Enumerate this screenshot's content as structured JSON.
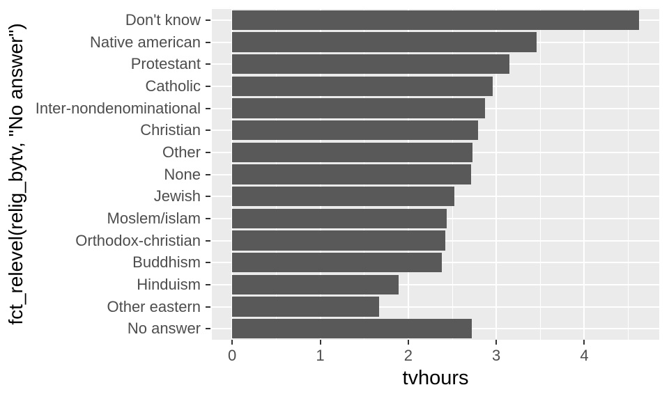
{
  "chart_data": {
    "type": "bar",
    "orientation": "horizontal",
    "title": "",
    "xlabel": "tvhours",
    "ylabel": "fct_relevel(relig_bytv, \"No answer\")",
    "categories": [
      "Don't know",
      "Native american",
      "Protestant",
      "Catholic",
      "Inter-nondenominational",
      "Christian",
      "Other",
      "None",
      "Jewish",
      "Moslem/islam",
      "Orthodox-christian",
      "Buddhism",
      "Hinduism",
      "Other eastern",
      "No answer"
    ],
    "values": [
      4.62,
      3.46,
      3.15,
      2.96,
      2.87,
      2.79,
      2.73,
      2.71,
      2.52,
      2.44,
      2.42,
      2.38,
      1.89,
      1.67,
      2.72
    ],
    "xlim": [
      -0.231,
      4.851
    ],
    "x_ticks": [
      0,
      1,
      2,
      3,
      4
    ],
    "x_minor_ticks": [
      0.5,
      1.5,
      2.5,
      3.5,
      4.5
    ],
    "bar_width_fraction": 0.9,
    "grid": "on",
    "legend_position": "none",
    "colors": {
      "bar": "#595959",
      "panel_bg": "#EBEBEB",
      "gridline": "#FFFFFF",
      "tick_mark": "#333333",
      "tick_label": "#4D4D4D",
      "axis_title": "#000000"
    }
  }
}
